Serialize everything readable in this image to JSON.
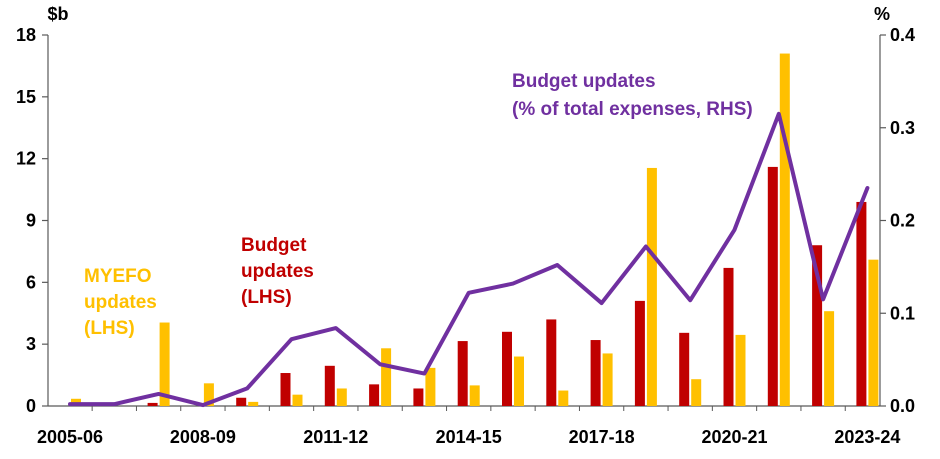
{
  "chart_data": {
    "type": "bar",
    "categories": [
      "2005-06",
      "2006-07",
      "2007-08",
      "2008-09",
      "2009-10",
      "2010-11",
      "2011-12",
      "2012-13",
      "2013-14",
      "2014-15",
      "2015-16",
      "2016-17",
      "2017-18",
      "2018-19",
      "2019-20",
      "2020-21",
      "2021-22",
      "2022-23",
      "2023-24"
    ],
    "x_tick_labels": [
      "2005-06",
      "2008-09",
      "2011-12",
      "2014-15",
      "2017-18",
      "2020-21",
      "2023-24"
    ],
    "left_axis": {
      "unit": "$b",
      "ylim": [
        0,
        18
      ],
      "ticks": [
        "0",
        "3",
        "6",
        "9",
        "12",
        "15",
        "18"
      ]
    },
    "right_axis": {
      "unit": "%",
      "ylim": [
        0,
        0.4
      ],
      "ticks": [
        "0.0",
        "0.1",
        "0.2",
        "0.3",
        "0.4"
      ]
    },
    "grid": false,
    "series": [
      {
        "name": "Budget updates (LHS)",
        "kind": "bar",
        "axis": "left",
        "color": "#C00000",
        "values": [
          null,
          null,
          0.15,
          null,
          0.4,
          1.6,
          1.95,
          1.05,
          0.85,
          3.15,
          3.6,
          4.2,
          3.2,
          5.1,
          3.55,
          6.7,
          11.6,
          7.8,
          9.9
        ]
      },
      {
        "name": "MYEFO updates (LHS)",
        "kind": "bar",
        "axis": "left",
        "color": "#FFC000",
        "values": [
          0.35,
          null,
          4.05,
          1.1,
          0.2,
          0.55,
          0.85,
          2.8,
          1.85,
          1.0,
          2.4,
          0.75,
          2.55,
          11.55,
          1.3,
          3.45,
          17.1,
          4.6,
          7.1
        ]
      },
      {
        "name": "Budget updates (% of total expenses, RHS)",
        "kind": "line",
        "axis": "right",
        "color": "#7030A0",
        "values": [
          0.002,
          0.002,
          0.013,
          0.001,
          0.019,
          0.072,
          0.084,
          0.045,
          0.035,
          0.122,
          0.132,
          0.152,
          0.111,
          0.172,
          0.114,
          0.19,
          0.315,
          0.115,
          0.235
        ]
      }
    ],
    "annotations": [
      {
        "lines": [
          "MYEFO",
          "updates",
          "(LHS)"
        ],
        "color": "#FFC000"
      },
      {
        "lines": [
          "Budget",
          "updates",
          "(LHS)"
        ],
        "color": "#C00000"
      },
      {
        "lines": [
          "Budget updates",
          "(% of total expenses, RHS)"
        ],
        "color": "#7030A0"
      }
    ]
  }
}
